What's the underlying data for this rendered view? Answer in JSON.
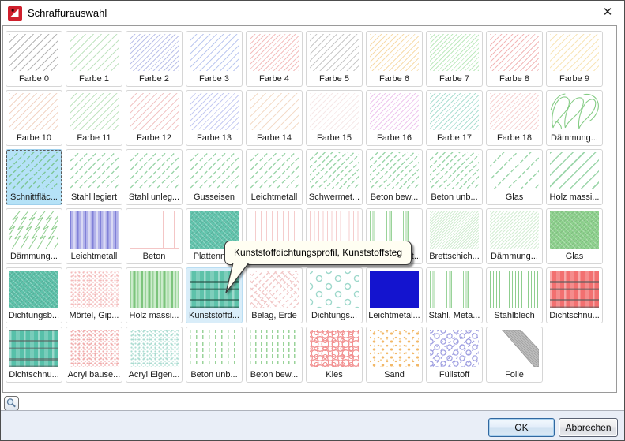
{
  "window": {
    "title": "Schraffurauswahl",
    "close_glyph": "✕",
    "app_icon": "allplan-red-logo"
  },
  "colors": {
    "selection_fill": "#b5e2f7",
    "hover_fill": "#d9edf9",
    "tooltip_bg": "#fffef2",
    "footer_bg": "#e9eef7",
    "ok_border": "#3168a0",
    "solid_blue_swatch": "#1414cf"
  },
  "tooltip": {
    "text": "Kunststoffdichtungsprofil, Kunststoffsteg"
  },
  "toolbar": {
    "zoom_icon": "magnifier"
  },
  "footer": {
    "ok": "OK",
    "cancel": "Abbrechen"
  },
  "grid": {
    "rows": [
      [
        {
          "label": "Farbe 0",
          "pattern": {
            "t": "diag",
            "c": "#b6b6b6",
            "g": 7
          }
        },
        {
          "label": "Farbe 1",
          "pattern": {
            "t": "diag",
            "c": "#c2e4c2",
            "g": 7
          }
        },
        {
          "label": "Farbe 2",
          "pattern": {
            "t": "diag",
            "c": "#bcc2ea",
            "g": 4.5
          }
        },
        {
          "label": "Farbe 3",
          "pattern": {
            "t": "diag",
            "c": "#bdc9f0",
            "g": 6
          }
        },
        {
          "label": "Farbe 4",
          "pattern": {
            "t": "diag",
            "c": "#f4bfbf",
            "g": 4.5
          }
        },
        {
          "label": "Farbe 5",
          "pattern": {
            "t": "diag",
            "c": "#c9c9c9",
            "g": 6
          }
        },
        {
          "label": "Farbe 6",
          "pattern": {
            "t": "diag",
            "c": "#f7dcab",
            "g": 5
          }
        },
        {
          "label": "Farbe 7",
          "pattern": {
            "t": "diag",
            "c": "#bfeabf",
            "g": 4
          }
        },
        {
          "label": "Farbe 8",
          "pattern": {
            "t": "diag",
            "c": "#f2b8b8",
            "g": 5
          }
        },
        {
          "label": "Farbe 9",
          "pattern": {
            "t": "diag",
            "c": "#f8e5b8",
            "g": 6
          }
        }
      ],
      [
        {
          "label": "Farbe 10",
          "pattern": {
            "t": "diag",
            "c": "#f2d5c6",
            "g": 6
          }
        },
        {
          "label": "Farbe 11",
          "pattern": {
            "t": "diag",
            "c": "#c2e4c2",
            "g": 6
          }
        },
        {
          "label": "Farbe 12",
          "pattern": {
            "t": "diag",
            "c": "#f2c6c6",
            "g": 6
          }
        },
        {
          "label": "Farbe 13",
          "pattern": {
            "t": "diag",
            "c": "#c6cbf2",
            "g": 5
          }
        },
        {
          "label": "Farbe 14",
          "pattern": {
            "t": "diag",
            "c": "#f4dcc9",
            "g": 7
          }
        },
        {
          "label": "Farbe 15",
          "pattern": {
            "t": "diag",
            "c": "#f6e8e8",
            "g": 5
          }
        },
        {
          "label": "Farbe 16",
          "pattern": {
            "t": "diag",
            "c": "#eec6ee",
            "g": 4.5
          }
        },
        {
          "label": "Farbe 17",
          "pattern": {
            "t": "diag",
            "c": "#aedfd3",
            "g": 4.5
          }
        },
        {
          "label": "Farbe 18",
          "pattern": {
            "t": "diag",
            "c": "#f6d2d2",
            "g": 4.5
          }
        },
        {
          "label": "Dämmung...",
          "pattern": {
            "t": "loops",
            "c": "#84cc84"
          }
        }
      ],
      [
        {
          "label": "Schnittfläc...",
          "state": "selected",
          "pattern": {
            "t": "diagdash",
            "c": "#7fc79a",
            "g": 7,
            "bg": "#b5e2f7"
          }
        },
        {
          "label": "Stahl legiert",
          "pattern": {
            "t": "diagdash",
            "c": "#9dd6ab",
            "g": 8
          }
        },
        {
          "label": "Stahl unleg...",
          "pattern": {
            "t": "diagdash",
            "c": "#9dd6ab",
            "g": 8
          }
        },
        {
          "label": "Gusseisen",
          "pattern": {
            "t": "diagdash",
            "c": "#9dd6ab",
            "g": 8
          }
        },
        {
          "label": "Leichtmetall",
          "pattern": {
            "t": "diagdash",
            "c": "#9dd6ab",
            "g": 8
          }
        },
        {
          "label": "Schwermet...",
          "pattern": {
            "t": "diagdash",
            "c": "#9dd6ab",
            "g": 6.5
          }
        },
        {
          "label": "Beton bew...",
          "pattern": {
            "t": "diagdash",
            "c": "#9dd6ab",
            "g": 6.5
          }
        },
        {
          "label": "Beton unb...",
          "pattern": {
            "t": "diagdash",
            "c": "#9dd6ab",
            "g": 6.5
          }
        },
        {
          "label": "Glas",
          "pattern": {
            "t": "diagdash",
            "c": "#9dd6ab",
            "g": 12
          }
        },
        {
          "label": "Holz massi...",
          "pattern": {
            "t": "diag",
            "c": "#9dd6ab",
            "g": 10,
            "w": 1.5
          }
        }
      ],
      [
        {
          "label": "Dämmung...",
          "pattern": {
            "t": "scribble",
            "c": "#8fce8f"
          }
        },
        {
          "label": "Leichtmetall",
          "pattern": {
            "t": "vstripes",
            "c": "#8181d8",
            "c2": "#b3b3ea",
            "c3": "#dadaf4"
          }
        },
        {
          "label": "Beton",
          "pattern": {
            "t": "grid",
            "c": "#f4c6c6",
            "g": 14
          }
        },
        {
          "label": "Plattenm...",
          "pattern": {
            "t": "fillhatch",
            "c": "#63c5ae"
          }
        },
        {
          "label": "",
          "pattern": {
            "t": "vlines",
            "c": "#f5cdcd",
            "g": 7
          }
        },
        {
          "label": "",
          "pattern": {
            "t": "vlines",
            "c": "#f5cdcd",
            "g": 5.5
          }
        },
        {
          "label": "t...",
          "align": "right",
          "pattern": {
            "t": "vgroups",
            "c": "#9ad39a"
          }
        },
        {
          "label": "Brettschich...",
          "pattern": {
            "t": "diag",
            "c": "#d2ecd2",
            "g": 2.5
          }
        },
        {
          "label": "Dämmung...",
          "pattern": {
            "t": "diag",
            "c": "#d4edd4",
            "g": 3
          }
        },
        {
          "label": "Glas",
          "pattern": {
            "t": "fillhatch",
            "c": "#8ed28e"
          }
        }
      ],
      [
        {
          "label": "Dichtungsb...",
          "pattern": {
            "t": "fillhatch",
            "c": "#5ec2aa"
          }
        },
        {
          "label": "Mörtel, Gip...",
          "pattern": {
            "t": "noise",
            "c": "#f4bcbc",
            "c2": "#f8d6d6"
          }
        },
        {
          "label": "Holz massi...",
          "pattern": {
            "t": "vstripes",
            "c": "#9ad39a",
            "c2": "#cdeccd",
            "c3": "#7cc47c"
          }
        },
        {
          "label": "Kunststoffd...",
          "state": "hover",
          "pattern": {
            "t": "plaid",
            "c": "#5ec2aa",
            "c2": "rgba(30,70,60,0.55)"
          }
        },
        {
          "label": "Belag, Erde",
          "pattern": {
            "t": "herringbone",
            "c": "#f2caca"
          }
        },
        {
          "label": "Dichtungs...",
          "pattern": {
            "t": "rings",
            "c": "#9ed8cb"
          }
        },
        {
          "label": "Leichtmetal...",
          "pattern": {
            "t": "solid",
            "c": "#1414cf"
          }
        },
        {
          "label": "Stahl, Meta...",
          "pattern": {
            "t": "vgroups",
            "c": "#9ad39a"
          }
        },
        {
          "label": "Stahlblech",
          "pattern": {
            "t": "vlines",
            "c": "#8fce8f",
            "g": 4
          }
        },
        {
          "label": "Dichtschnu...",
          "pattern": {
            "t": "plaid",
            "c": "#f27070",
            "c2": "rgba(90,90,90,0.60)"
          }
        }
      ],
      [
        {
          "label": "Dichtschnu...",
          "pattern": {
            "t": "plaid",
            "c": "#57c0a9",
            "c2": "rgba(90,90,90,0.55)"
          }
        },
        {
          "label": "Acryl bause...",
          "pattern": {
            "t": "noise",
            "c": "#f0acac",
            "c2": "#f6caca"
          }
        },
        {
          "label": "Acryl Eigen...",
          "pattern": {
            "t": "noise",
            "c": "#abdcd1",
            "c2": "#cdebe4"
          }
        },
        {
          "label": "Beton unb...",
          "pattern": {
            "t": "vdash",
            "c": "#9ad39a",
            "g": 8
          }
        },
        {
          "label": "Beton bew...",
          "pattern": {
            "t": "vdash",
            "c": "#9ad39a",
            "g": 7
          }
        },
        {
          "label": "Kies",
          "pattern": {
            "t": "pebbles",
            "c": "#f29090"
          }
        },
        {
          "label": "Sand",
          "pattern": {
            "t": "dots",
            "c": "#f2b868",
            "c2": "#f6d098"
          }
        },
        {
          "label": "Füllstoff",
          "pattern": {
            "t": "fuellstoff",
            "c": "#a2a2e2"
          }
        },
        {
          "label": "Folie",
          "pattern": {
            "t": "folie",
            "c": "#b0b0b0"
          }
        }
      ]
    ]
  }
}
